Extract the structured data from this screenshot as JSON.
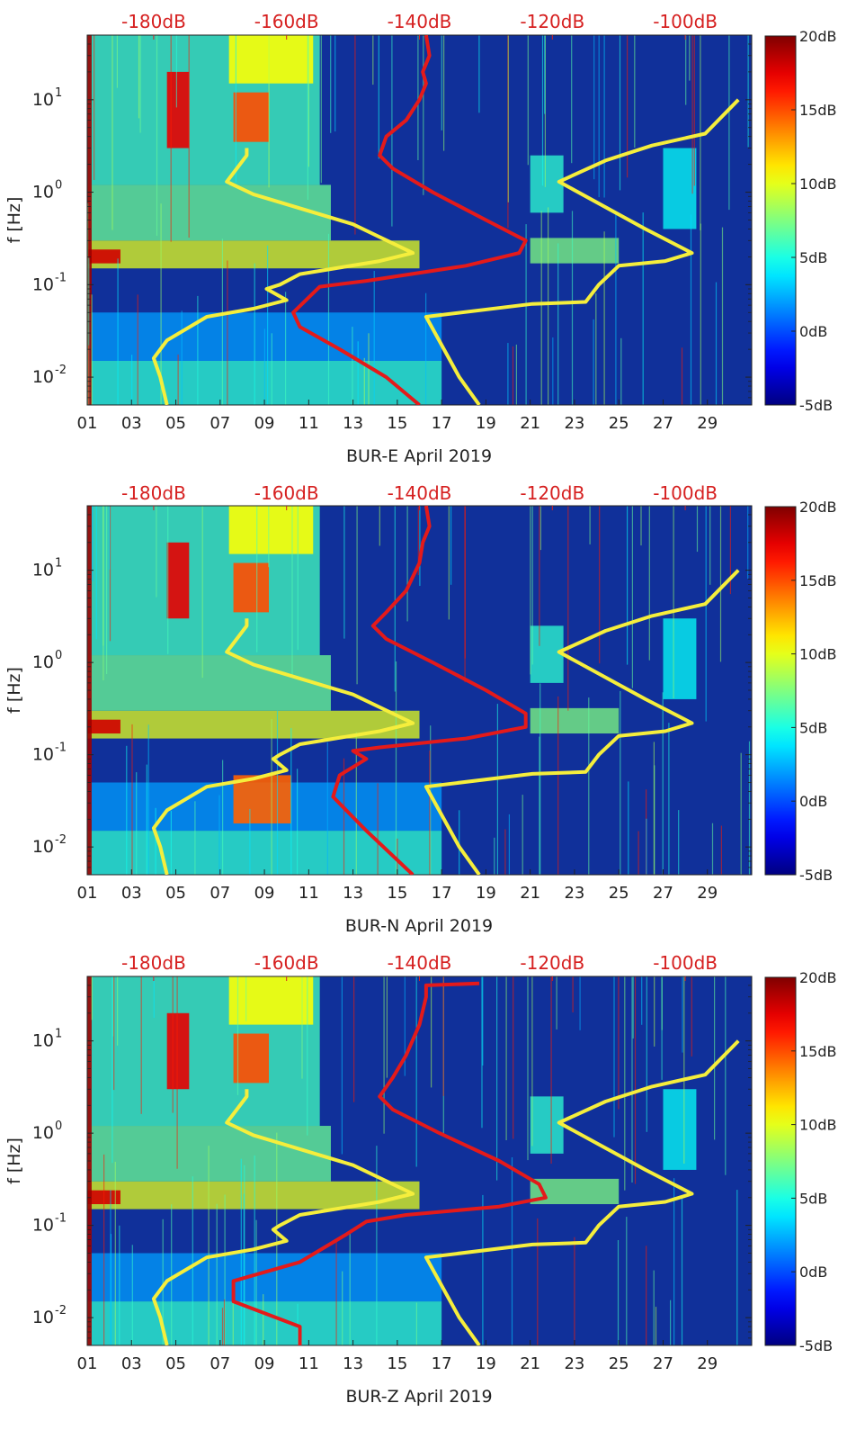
{
  "colors": {
    "red_line": "#e41a1a",
    "yellow_line": "#f5ee3c",
    "top_axis_text": "#d62020",
    "background_base": "#10309a"
  },
  "chart_data": [
    {
      "type": "heatmap",
      "title": "",
      "xlabel": "BUR-E April 2019",
      "ylabel": "f [Hz]",
      "x_ticks": [
        "01",
        "03",
        "05",
        "07",
        "09",
        "11",
        "13",
        "15",
        "17",
        "19",
        "21",
        "23",
        "25",
        "27",
        "29"
      ],
      "x_tick_values": [
        1,
        3,
        5,
        7,
        9,
        11,
        13,
        15,
        17,
        19,
        21,
        23,
        25,
        27,
        29
      ],
      "xlim": [
        1,
        31
      ],
      "y_scale": "log",
      "y_ticks": [
        "10^{-2}",
        "10^{-1}",
        "10^{0}",
        "10^{1}"
      ],
      "ylim": [
        0.005,
        50
      ],
      "top_axis": {
        "label": "",
        "ticks": [
          "-180dB",
          "-160dB",
          "-140dB",
          "-120dB",
          "-100dB"
        ],
        "values": [
          -180,
          -160,
          -140,
          -120,
          -100
        ],
        "range": [
          -190,
          -90
        ]
      },
      "colorbar": {
        "ticks": [
          "20dB",
          "15dB",
          "10dB",
          "5dB",
          "0dB",
          "-5dB"
        ],
        "range": [
          -5,
          20
        ],
        "colormap": "jet"
      },
      "series": [
        {
          "color": "red",
          "axis": "top",
          "points": [
            [
              -139,
              50
            ],
            [
              -138.5,
              30
            ],
            [
              -139.5,
              20
            ],
            [
              -139,
              15
            ],
            [
              -140,
              10
            ],
            [
              -142,
              6
            ],
            [
              -145,
              4
            ],
            [
              -146,
              2.5
            ],
            [
              -144,
              1.8
            ],
            [
              -138,
              1.0
            ],
            [
              -130,
              0.5
            ],
            [
              -124,
              0.3
            ],
            [
              -125,
              0.22
            ],
            [
              -133,
              0.16
            ],
            [
              -148,
              0.11
            ],
            [
              -155,
              0.095
            ],
            [
              -159,
              0.05
            ],
            [
              -158,
              0.035
            ],
            [
              -152,
              0.02
            ],
            [
              -145,
              0.01
            ],
            [
              -140,
              0.005
            ]
          ]
        },
        {
          "color": "yellow",
          "axis": "top",
          "points": [
            [
              -178,
              0.005
            ],
            [
              -179,
              0.01
            ],
            [
              -180,
              0.016
            ],
            [
              -178,
              0.025
            ],
            [
              -172,
              0.045
            ],
            [
              -165,
              0.055
            ],
            [
              -160,
              0.068
            ],
            [
              -163,
              0.09
            ],
            [
              -161,
              0.1
            ],
            [
              -158,
              0.13
            ],
            [
              -146,
              0.18
            ],
            [
              -141,
              0.22
            ],
            [
              -150,
              0.45
            ],
            [
              -165,
              0.95
            ],
            [
              -169,
              1.3
            ],
            [
              -166,
              2.5
            ],
            [
              -166,
              3
            ]
          ]
        },
        {
          "color": "yellow",
          "axis": "top",
          "points": [
            [
              -131,
              0.005
            ],
            [
              -134,
              0.01
            ],
            [
              -139,
              0.045
            ],
            [
              -123,
              0.062
            ],
            [
              -115,
              0.065
            ],
            [
              -113,
              0.1
            ],
            [
              -110,
              0.16
            ],
            [
              -103,
              0.18
            ],
            [
              -99,
              0.22
            ],
            [
              -106,
              0.4
            ],
            [
              -119,
              1.3
            ],
            [
              -112,
              2.2
            ],
            [
              -105,
              3.2
            ],
            [
              -97,
              4.3
            ],
            [
              -92,
              10
            ]
          ]
        }
      ]
    },
    {
      "type": "heatmap",
      "title": "",
      "xlabel": "BUR-N April 2019",
      "ylabel": "f [Hz]",
      "x_ticks": [
        "01",
        "03",
        "05",
        "07",
        "09",
        "11",
        "13",
        "15",
        "17",
        "19",
        "21",
        "23",
        "25",
        "27",
        "29"
      ],
      "x_tick_values": [
        1,
        3,
        5,
        7,
        9,
        11,
        13,
        15,
        17,
        19,
        21,
        23,
        25,
        27,
        29
      ],
      "xlim": [
        1,
        31
      ],
      "y_scale": "log",
      "y_ticks": [
        "10^{-2}",
        "10^{-1}",
        "10^{0}",
        "10^{1}"
      ],
      "ylim": [
        0.005,
        50
      ],
      "top_axis": {
        "label": "",
        "ticks": [
          "-180dB",
          "-160dB",
          "-140dB",
          "-120dB",
          "-100dB"
        ],
        "values": [
          -180,
          -160,
          -140,
          -120,
          -100
        ],
        "range": [
          -190,
          -90
        ]
      },
      "colorbar": {
        "ticks": [
          "20dB",
          "15dB",
          "10dB",
          "5dB",
          "0dB",
          "-5dB"
        ],
        "range": [
          -5,
          20
        ],
        "colormap": "jet"
      },
      "series": [
        {
          "color": "red",
          "axis": "top",
          "points": [
            [
              -139,
              50
            ],
            [
              -138.5,
              30
            ],
            [
              -139.5,
              20
            ],
            [
              -140,
              12
            ],
            [
              -142,
              6
            ],
            [
              -145,
              3.5
            ],
            [
              -147,
              2.5
            ],
            [
              -145,
              1.8
            ],
            [
              -138,
              1.0
            ],
            [
              -130,
              0.5
            ],
            [
              -124,
              0.28
            ],
            [
              -124,
              0.2
            ],
            [
              -133,
              0.15
            ],
            [
              -146,
              0.12
            ],
            [
              -150,
              0.11
            ],
            [
              -148,
              0.09
            ],
            [
              -152,
              0.06
            ],
            [
              -153,
              0.035
            ],
            [
              -148,
              0.015
            ],
            [
              -141,
              0.005
            ]
          ]
        },
        {
          "color": "yellow",
          "axis": "top",
          "points": [
            [
              -178,
              0.005
            ],
            [
              -179,
              0.01
            ],
            [
              -180,
              0.016
            ],
            [
              -178,
              0.025
            ],
            [
              -172,
              0.045
            ],
            [
              -165,
              0.055
            ],
            [
              -160,
              0.068
            ],
            [
              -162,
              0.09
            ],
            [
              -161,
              0.1
            ],
            [
              -158,
              0.13
            ],
            [
              -146,
              0.18
            ],
            [
              -141,
              0.22
            ],
            [
              -150,
              0.45
            ],
            [
              -165,
              0.95
            ],
            [
              -169,
              1.3
            ],
            [
              -166,
              2.5
            ],
            [
              -166,
              3
            ]
          ]
        },
        {
          "color": "yellow",
          "axis": "top",
          "points": [
            [
              -131,
              0.005
            ],
            [
              -134,
              0.01
            ],
            [
              -139,
              0.045
            ],
            [
              -123,
              0.062
            ],
            [
              -115,
              0.065
            ],
            [
              -113,
              0.1
            ],
            [
              -110,
              0.16
            ],
            [
              -103,
              0.18
            ],
            [
              -99,
              0.22
            ],
            [
              -106,
              0.4
            ],
            [
              -119,
              1.3
            ],
            [
              -112,
              2.2
            ],
            [
              -105,
              3.2
            ],
            [
              -97,
              4.3
            ],
            [
              -92,
              10
            ]
          ]
        }
      ]
    },
    {
      "type": "heatmap",
      "title": "",
      "xlabel": "BUR-Z April 2019",
      "ylabel": "f [Hz]",
      "x_ticks": [
        "01",
        "03",
        "05",
        "07",
        "09",
        "11",
        "13",
        "15",
        "17",
        "19",
        "21",
        "23",
        "25",
        "27",
        "29"
      ],
      "x_tick_values": [
        1,
        3,
        5,
        7,
        9,
        11,
        13,
        15,
        17,
        19,
        21,
        23,
        25,
        27,
        29
      ],
      "xlim": [
        1,
        31
      ],
      "y_scale": "log",
      "y_ticks": [
        "10^{-2}",
        "10^{-1}",
        "10^{0}",
        "10^{1}"
      ],
      "ylim": [
        0.005,
        50
      ],
      "top_axis": {
        "label": "",
        "ticks": [
          "-180dB",
          "-160dB",
          "-140dB",
          "-120dB",
          "-100dB"
        ],
        "values": [
          -180,
          -160,
          -140,
          -120,
          -100
        ],
        "range": [
          -190,
          -90
        ]
      },
      "colorbar": {
        "ticks": [
          "20dB",
          "15dB",
          "10dB",
          "5dB",
          "0dB",
          "-5dB"
        ],
        "range": [
          -5,
          20
        ],
        "colormap": "jet"
      },
      "series": [
        {
          "color": "red",
          "axis": "top",
          "points": [
            [
              -131,
              42
            ],
            [
              -139,
              40
            ],
            [
              -139,
              30
            ],
            [
              -140,
              15
            ],
            [
              -142,
              7
            ],
            [
              -144,
              4
            ],
            [
              -146,
              2.5
            ],
            [
              -144,
              1.8
            ],
            [
              -137,
              1.0
            ],
            [
              -128,
              0.5
            ],
            [
              -122,
              0.28
            ],
            [
              -121,
              0.2
            ],
            [
              -128,
              0.16
            ],
            [
              -142,
              0.13
            ],
            [
              -148,
              0.11
            ],
            [
              -151,
              0.08
            ],
            [
              -158,
              0.04
            ],
            [
              -168,
              0.025
            ],
            [
              -168,
              0.015
            ],
            [
              -158,
              0.008
            ],
            [
              -158,
              0.005
            ]
          ]
        },
        {
          "color": "yellow",
          "axis": "top",
          "points": [
            [
              -178,
              0.005
            ],
            [
              -179,
              0.01
            ],
            [
              -180,
              0.016
            ],
            [
              -178,
              0.025
            ],
            [
              -172,
              0.045
            ],
            [
              -165,
              0.055
            ],
            [
              -160,
              0.068
            ],
            [
              -162,
              0.09
            ],
            [
              -161,
              0.1
            ],
            [
              -158,
              0.13
            ],
            [
              -146,
              0.18
            ],
            [
              -141,
              0.22
            ],
            [
              -150,
              0.45
            ],
            [
              -165,
              0.95
            ],
            [
              -169,
              1.3
            ],
            [
              -166,
              2.5
            ],
            [
              -166,
              3
            ]
          ]
        },
        {
          "color": "yellow",
          "axis": "top",
          "points": [
            [
              -131,
              0.005
            ],
            [
              -134,
              0.01
            ],
            [
              -139,
              0.045
            ],
            [
              -123,
              0.062
            ],
            [
              -115,
              0.065
            ],
            [
              -113,
              0.1
            ],
            [
              -110,
              0.16
            ],
            [
              -103,
              0.18
            ],
            [
              -99,
              0.22
            ],
            [
              -106,
              0.4
            ],
            [
              -119,
              1.3
            ],
            [
              -112,
              2.2
            ],
            [
              -105,
              3.2
            ],
            [
              -97,
              4.3
            ],
            [
              -92,
              10
            ]
          ]
        }
      ]
    }
  ]
}
